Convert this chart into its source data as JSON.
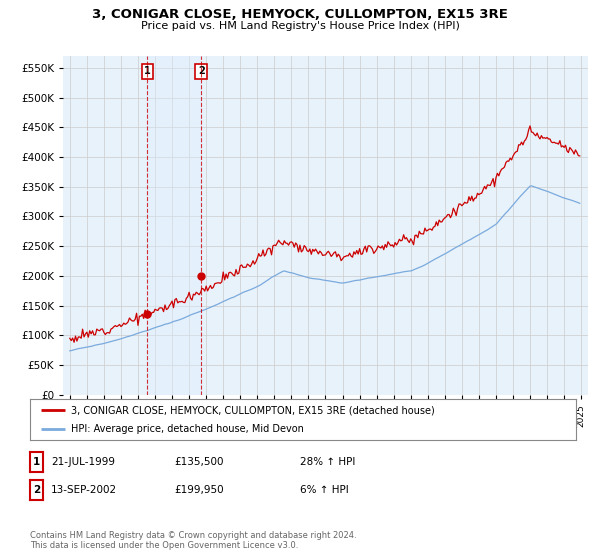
{
  "title": "3, CONIGAR CLOSE, HEMYOCK, CULLOMPTON, EX15 3RE",
  "subtitle": "Price paid vs. HM Land Registry's House Price Index (HPI)",
  "ylim": [
    0,
    570000
  ],
  "yticks": [
    0,
    50000,
    100000,
    150000,
    200000,
    250000,
    300000,
    350000,
    400000,
    450000,
    500000,
    550000
  ],
  "ytick_labels": [
    "£0",
    "£50K",
    "£100K",
    "£150K",
    "£200K",
    "£250K",
    "£300K",
    "£350K",
    "£400K",
    "£450K",
    "£500K",
    "£550K"
  ],
  "xlim_start": 1994.6,
  "xlim_end": 2025.4,
  "hpi_color": "#7aaadd",
  "price_color": "#cc0000",
  "span_color": "#ddeeff",
  "background_color": "#e8f2fb",
  "grid_color": "#cccccc",
  "sale1_year": 1999.55,
  "sale1_price": 135500,
  "sale2_year": 2002.71,
  "sale2_price": 199950,
  "legend_label1": "3, CONIGAR CLOSE, HEMYOCK, CULLOMPTON, EX15 3RE (detached house)",
  "legend_label2": "HPI: Average price, detached house, Mid Devon",
  "table_row1": [
    "1",
    "21-JUL-1999",
    "£135,500",
    "28% ↑ HPI"
  ],
  "table_row2": [
    "2",
    "13-SEP-2002",
    "£199,950",
    "6% ↑ HPI"
  ],
  "footer": "Contains HM Land Registry data © Crown copyright and database right 2024.\nThis data is licensed under the Open Government Licence v3.0."
}
